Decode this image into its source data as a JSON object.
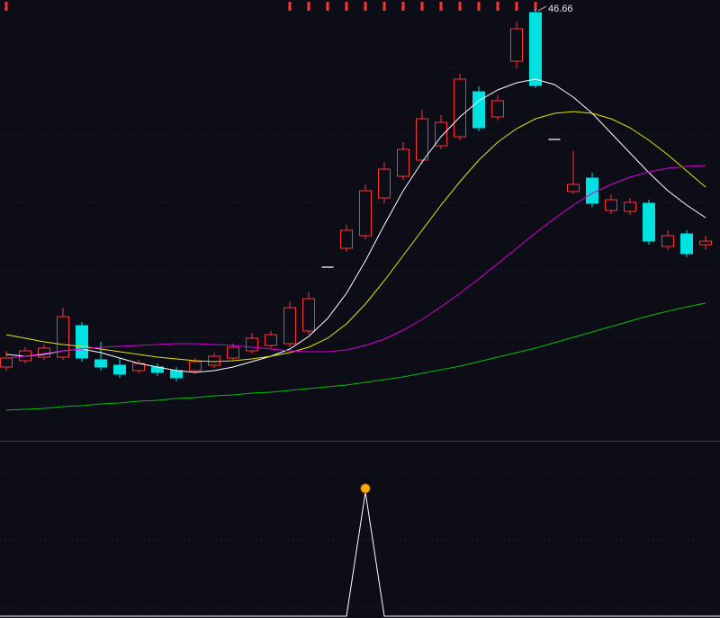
{
  "colors": {
    "background": "#0d0d18",
    "grid": "#23264a",
    "divider": "#3e3e52",
    "up": "#ff3333",
    "down": "#00e2e2",
    "flat": "#d8d8d8",
    "annotation_text": "#e8e8e8",
    "signal_line": "#ffffff",
    "signal_dot_fill": "#ffaa00",
    "signal_dot_stroke": "#b36b00"
  },
  "chart_data": [
    {
      "type": "candlestick",
      "ylim": [
        17.86,
        47.26
      ],
      "x_count": 38,
      "grid": "horizontal-dotted",
      "annotation": {
        "label": "46.66",
        "candle_index": 28,
        "price": 46.66
      },
      "top_marks": {
        "color": "#ff3333",
        "indices": [
          0,
          15,
          16,
          17,
          18,
          19,
          20,
          21,
          22,
          23,
          24,
          25,
          26,
          27,
          28
        ]
      },
      "candles": [
        {
          "dir": "up",
          "o": 22.78,
          "h": 23.86,
          "l": 22.54,
          "c": 23.38
        },
        {
          "dir": "up",
          "o": 23.2,
          "h": 24.1,
          "l": 23.02,
          "c": 23.86
        },
        {
          "dir": "up",
          "o": 23.44,
          "h": 24.28,
          "l": 23.26,
          "c": 24.04
        },
        {
          "dir": "up",
          "o": 23.44,
          "h": 26.74,
          "l": 23.26,
          "c": 26.14
        },
        {
          "dir": "down",
          "o": 25.54,
          "h": 25.78,
          "l": 23.14,
          "c": 23.38
        },
        {
          "dir": "down",
          "o": 23.26,
          "h": 24.46,
          "l": 22.54,
          "c": 22.78
        },
        {
          "dir": "down",
          "o": 22.9,
          "h": 23.38,
          "l": 22.06,
          "c": 22.3
        },
        {
          "dir": "up",
          "o": 22.54,
          "h": 23.26,
          "l": 22.36,
          "c": 23.02
        },
        {
          "dir": "down",
          "o": 22.78,
          "h": 23.02,
          "l": 22.18,
          "c": 22.42
        },
        {
          "dir": "down",
          "o": 22.54,
          "h": 22.78,
          "l": 21.82,
          "c": 22.06
        },
        {
          "dir": "up",
          "o": 22.54,
          "h": 23.38,
          "l": 22.36,
          "c": 23.14
        },
        {
          "dir": "up",
          "o": 22.9,
          "h": 23.74,
          "l": 22.72,
          "c": 23.5
        },
        {
          "dir": "up",
          "o": 23.38,
          "h": 24.34,
          "l": 23.2,
          "c": 24.1
        },
        {
          "dir": "up",
          "o": 23.86,
          "h": 25.06,
          "l": 23.68,
          "c": 24.7
        },
        {
          "dir": "up",
          "o": 24.22,
          "h": 25.18,
          "l": 24.04,
          "c": 24.94
        },
        {
          "dir": "up",
          "o": 24.34,
          "h": 27.16,
          "l": 24.1,
          "c": 26.74
        },
        {
          "dir": "up",
          "o": 25.18,
          "h": 27.76,
          "l": 24.94,
          "c": 27.34
        },
        {
          "dir": "flat",
          "o": 29.44,
          "h": 29.44,
          "l": 29.44,
          "c": 29.44
        },
        {
          "dir": "up",
          "o": 30.7,
          "h": 32.26,
          "l": 30.46,
          "c": 31.9
        },
        {
          "dir": "up",
          "o": 31.54,
          "h": 34.96,
          "l": 31.3,
          "c": 34.54
        },
        {
          "dir": "up",
          "o": 34.06,
          "h": 36.46,
          "l": 33.7,
          "c": 35.98
        },
        {
          "dir": "up",
          "o": 35.5,
          "h": 37.78,
          "l": 35.26,
          "c": 37.3
        },
        {
          "dir": "up",
          "o": 36.58,
          "h": 39.94,
          "l": 36.34,
          "c": 39.34
        },
        {
          "dir": "up",
          "o": 37.54,
          "h": 39.58,
          "l": 37.3,
          "c": 39.1
        },
        {
          "dir": "up",
          "o": 38.14,
          "h": 42.34,
          "l": 37.9,
          "c": 41.98
        },
        {
          "dir": "down",
          "o": 41.14,
          "h": 41.5,
          "l": 38.5,
          "c": 38.74
        },
        {
          "dir": "up",
          "o": 39.46,
          "h": 40.9,
          "l": 39.22,
          "c": 40.54
        },
        {
          "dir": "up",
          "o": 43.18,
          "h": 45.82,
          "l": 42.7,
          "c": 45.34
        },
        {
          "dir": "down",
          "o": 46.42,
          "h": 46.66,
          "l": 41.38,
          "c": 41.56
        },
        {
          "dir": "flat",
          "o": 37.96,
          "h": 37.96,
          "l": 37.96,
          "c": 37.96
        },
        {
          "dir": "up",
          "o": 34.48,
          "h": 37.18,
          "l": 34.3,
          "c": 34.96
        },
        {
          "dir": "down",
          "o": 35.38,
          "h": 35.74,
          "l": 33.46,
          "c": 33.7
        },
        {
          "dir": "up",
          "o": 33.22,
          "h": 34.3,
          "l": 32.98,
          "c": 33.94
        },
        {
          "dir": "up",
          "o": 33.16,
          "h": 34.06,
          "l": 32.92,
          "c": 33.76
        },
        {
          "dir": "down",
          "o": 33.7,
          "h": 33.94,
          "l": 30.94,
          "c": 31.18
        },
        {
          "dir": "up",
          "o": 30.82,
          "h": 31.9,
          "l": 30.58,
          "c": 31.54
        },
        {
          "dir": "down",
          "o": 31.66,
          "h": 31.9,
          "l": 30.1,
          "c": 30.34
        },
        {
          "dir": "up",
          "o": 30.94,
          "h": 31.54,
          "l": 30.58,
          "c": 31.18
        }
      ],
      "ma_series": [
        {
          "name": "ma-white",
          "color": "#ffffff",
          "values": [
            23.62,
            23.5,
            23.62,
            23.86,
            23.98,
            23.74,
            23.38,
            23.02,
            22.78,
            22.54,
            22.42,
            22.54,
            22.78,
            23.14,
            23.5,
            23.98,
            24.82,
            26.02,
            27.7,
            29.86,
            32.26,
            34.54,
            36.46,
            38.14,
            39.46,
            40.54,
            41.26,
            41.74,
            41.98,
            41.62,
            40.78,
            39.7,
            38.38,
            37.06,
            35.74,
            34.54,
            33.58,
            32.74
          ]
        },
        {
          "name": "ma-yellow",
          "color": "#e6e600",
          "values": [
            24.94,
            24.7,
            24.46,
            24.28,
            24.16,
            23.98,
            23.8,
            23.62,
            23.44,
            23.32,
            23.2,
            23.14,
            23.2,
            23.32,
            23.5,
            23.74,
            24.1,
            24.7,
            25.66,
            26.98,
            28.54,
            30.22,
            31.9,
            33.58,
            35.14,
            36.58,
            37.78,
            38.68,
            39.34,
            39.7,
            39.82,
            39.7,
            39.34,
            38.74,
            37.9,
            36.94,
            35.86,
            34.78
          ]
        },
        {
          "name": "ma-magenta",
          "color": "#d800d8",
          "values": [
            23.38,
            23.5,
            23.68,
            23.86,
            23.98,
            24.1,
            24.16,
            24.22,
            24.28,
            24.34,
            24.34,
            24.28,
            24.22,
            24.1,
            23.98,
            23.86,
            23.8,
            23.8,
            23.92,
            24.22,
            24.64,
            25.24,
            25.96,
            26.8,
            27.7,
            28.66,
            29.68,
            30.7,
            31.72,
            32.68,
            33.58,
            34.36,
            34.96,
            35.44,
            35.8,
            36.04,
            36.16,
            36.22
          ]
        },
        {
          "name": "ma-green",
          "color": "#00c000",
          "values": [
            19.9,
            19.96,
            20.02,
            20.14,
            20.2,
            20.32,
            20.38,
            20.5,
            20.56,
            20.68,
            20.74,
            20.86,
            20.92,
            21.04,
            21.1,
            21.22,
            21.34,
            21.46,
            21.58,
            21.76,
            21.94,
            22.12,
            22.36,
            22.6,
            22.84,
            23.14,
            23.44,
            23.74,
            24.04,
            24.4,
            24.76,
            25.12,
            25.48,
            25.84,
            26.2,
            26.5,
            26.8,
            27.04
          ]
        }
      ]
    },
    {
      "type": "line",
      "name": "signal-indicator",
      "ylim": [
        0,
        1.4
      ],
      "values": [
        0,
        0,
        0,
        0,
        0,
        0,
        0,
        0,
        0,
        0,
        0,
        0,
        0,
        0,
        0,
        0,
        0,
        0,
        0,
        1,
        0,
        0,
        0,
        0,
        0,
        0,
        0,
        0,
        0,
        0,
        0,
        0,
        0,
        0,
        0,
        0,
        0,
        0
      ],
      "marker": {
        "index": 19,
        "value": 1,
        "shape": "circle"
      }
    }
  ]
}
